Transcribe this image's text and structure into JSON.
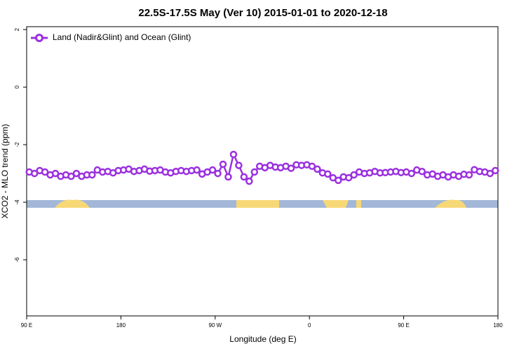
{
  "chart_data": {
    "type": "line",
    "title": "22.5S-17.5S May (Ver 10)   2015-01-01 to 2020-12-18",
    "x_label": "Longitude (deg E)",
    "y_label": "XCO2 - MLO trend (ppm)",
    "xlim": [
      90,
      540
    ],
    "ylim": [
      -7.95,
      2.1
    ],
    "xticks": [
      {
        "value": 90,
        "label": "90 E"
      },
      180,
      {
        "value": 270,
        "label": "90 W"
      },
      {
        "value": 360,
        "label": "0"
      },
      {
        "value": 450,
        "label": "90 E"
      },
      {
        "value": 540,
        "label": "180"
      }
    ],
    "yticks": [
      -6,
      -4,
      -2,
      0,
      2
    ],
    "legend": "top-left",
    "x": [
      92.5,
      97.5,
      102.5,
      107.5,
      112.5,
      117.5,
      122.5,
      127.5,
      132.5,
      137.5,
      142.5,
      147.5,
      152.5,
      157.5,
      162.5,
      167.5,
      172.5,
      177.5,
      182.5,
      187.5,
      192.5,
      197.5,
      202.5,
      207.5,
      212.5,
      217.5,
      222.5,
      227.5,
      232.5,
      237.5,
      242.5,
      247.5,
      252.5,
      257.5,
      262.5,
      267.5,
      272.5,
      277.5,
      282.5,
      287.5,
      292.5,
      297.5,
      302.5,
      307.5,
      312.5,
      317.5,
      322.5,
      327.5,
      332.5,
      337.5,
      342.5,
      347.5,
      352.5,
      357.5,
      362.5,
      367.5,
      372.5,
      377.5,
      382.5,
      387.5,
      392.5,
      397.5,
      402.5,
      407.5,
      412.5,
      417.5,
      422.5,
      427.5,
      432.5,
      437.5,
      442.5,
      447.5,
      452.5,
      457.5,
      462.5,
      467.5,
      472.5,
      477.5,
      482.5,
      487.5,
      492.5,
      497.5,
      502.5,
      507.5,
      512.5,
      517.5,
      522.5,
      527.5,
      532.5,
      537.5
    ],
    "series": [
      {
        "name": "Land (Nadir&Glint) and Ocean (Glint)",
        "color": "#9b30e0",
        "values": [
          -2.95,
          -3.0,
          -2.9,
          -2.95,
          -3.05,
          -3.0,
          -3.1,
          -3.05,
          -3.1,
          -3.0,
          -3.1,
          -3.05,
          -3.05,
          -2.88,
          -2.95,
          -2.93,
          -2.98,
          -2.9,
          -2.88,
          -2.85,
          -2.93,
          -2.9,
          -2.85,
          -2.92,
          -2.9,
          -2.88,
          -2.95,
          -2.98,
          -2.93,
          -2.9,
          -2.93,
          -2.9,
          -2.88,
          -3.02,
          -2.95,
          -2.88,
          -3.0,
          -2.68,
          -3.12,
          -2.34,
          -2.72,
          -3.12,
          -3.27,
          -2.95,
          -2.75,
          -2.8,
          -2.72,
          -2.78,
          -2.8,
          -2.75,
          -2.82,
          -2.7,
          -2.72,
          -2.7,
          -2.75,
          -2.85,
          -2.98,
          -3.02,
          -3.15,
          -3.24,
          -3.12,
          -3.15,
          -3.05,
          -2.95,
          -3.0,
          -2.98,
          -2.93,
          -2.98,
          -2.97,
          -2.95,
          -2.93,
          -2.97,
          -2.95,
          -3.0,
          -2.88,
          -2.93,
          -3.05,
          -3.02,
          -3.1,
          -3.05,
          -3.12,
          -3.05,
          -3.1,
          -3.03,
          -3.05,
          -2.87,
          -2.93,
          -2.95,
          -3.0,
          -2.9
        ]
      }
    ]
  }
}
